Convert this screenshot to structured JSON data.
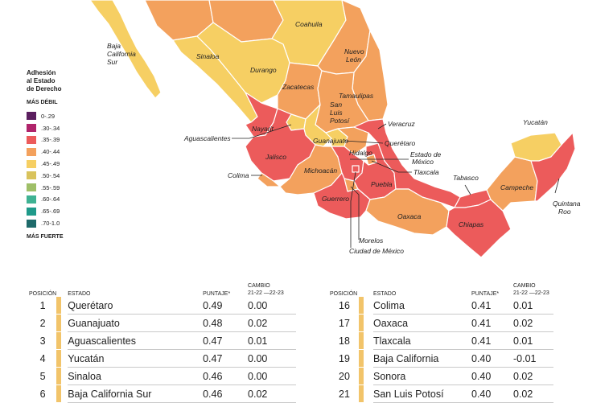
{
  "legend": {
    "title_lines": [
      "Adhesión",
      "al Estado",
      "de Derecho"
    ],
    "top_label": "MÁS DÉBIL",
    "bottom_label": "MÁS FUERTE",
    "items": [
      {
        "label": "0-.29",
        "color": "#5b1f5f"
      },
      {
        "label": ".30-.34",
        "color": "#b0246b"
      },
      {
        "label": ".35-.39",
        "color": "#ec5b5b"
      },
      {
        "label": ".40-.44",
        "color": "#f3a15d"
      },
      {
        "label": ".45-.49",
        "color": "#f6cf63"
      },
      {
        "label": ".50-.54",
        "color": "#d9c35c"
      },
      {
        "label": ".55-.59",
        "color": "#9fbf68"
      },
      {
        "label": ".60-.64",
        "color": "#3fb293"
      },
      {
        "label": ".65-.69",
        "color": "#1f9a8a"
      },
      {
        "label": ".70-1.0",
        "color": "#1e6a6a"
      }
    ]
  },
  "map_labels": {
    "baja_california_sur": [
      "Baja",
      "California",
      "Sur"
    ],
    "coahuila": "Coahuila",
    "nuevo_leon": [
      "Nuevo",
      "León"
    ],
    "sinaloa": "Sinaloa",
    "durango": "Durango",
    "zacatecas": "Zacatecas",
    "tamaulipas": "Tamaulipas",
    "san_luis_potosi": [
      "San",
      "Luis",
      "Potosí"
    ],
    "aguascalientes": "Aguascalientes",
    "nayarit": "Nayarit",
    "veracruz": "Veracruz",
    "guanajuato": "Guanajuato",
    "queretaro": "Querétaro",
    "hidalgo": "Hidalgo",
    "estado_de_mexico": [
      "Estado de",
      "México"
    ],
    "tlaxcala": "Tlaxcala",
    "jalisco": "Jalisco",
    "michoacan": "Michoacán",
    "colima": "Colima",
    "puebla": "Puebla",
    "guerrero": "Guerrero",
    "oaxaca": "Oaxaca",
    "morelos": "Morelos",
    "ciudad_de_mexico": "Ciudad de México",
    "chiapas": "Chiapas",
    "tabasco": "Tabasco",
    "campeche": "Campeche",
    "yucatan": "Yucatán",
    "quintana_roo": [
      "Quintana",
      "Roo"
    ]
  },
  "table_headers": {
    "position": "POSICIÓN",
    "state": "ESTADO",
    "score": "PUNTAJE*",
    "change_line1": "CAMBIO",
    "change_line2": "21-22 —22-23"
  },
  "table_left": [
    {
      "pos": "1",
      "state": "Querétaro",
      "score": "0.49",
      "change": "0.00"
    },
    {
      "pos": "2",
      "state": "Guanajuato",
      "score": "0.48",
      "change": "0.02"
    },
    {
      "pos": "3",
      "state": "Aguascalientes",
      "score": "0.47",
      "change": "0.01"
    },
    {
      "pos": "4",
      "state": "Yucatán",
      "score": "0.47",
      "change": "0.00"
    },
    {
      "pos": "5",
      "state": "Sinaloa",
      "score": "0.46",
      "change": "0.00"
    },
    {
      "pos": "6",
      "state": "Baja California Sur",
      "score": "0.46",
      "change": "0.02"
    }
  ],
  "table_right": [
    {
      "pos": "16",
      "state": "Colima",
      "score": "0.41",
      "change": "0.01"
    },
    {
      "pos": "17",
      "state": "Oaxaca",
      "score": "0.41",
      "change": "0.02"
    },
    {
      "pos": "18",
      "state": "Tlaxcala",
      "score": "0.41",
      "change": "0.01"
    },
    {
      "pos": "19",
      "state": "Baja California",
      "score": "0.40",
      "change": "-0.01"
    },
    {
      "pos": "20",
      "state": "Sonora",
      "score": "0.40",
      "change": "0.02"
    },
    {
      "pos": "21",
      "state": "San Luis Potosí",
      "score": "0.40",
      "change": "0.02"
    }
  ]
}
